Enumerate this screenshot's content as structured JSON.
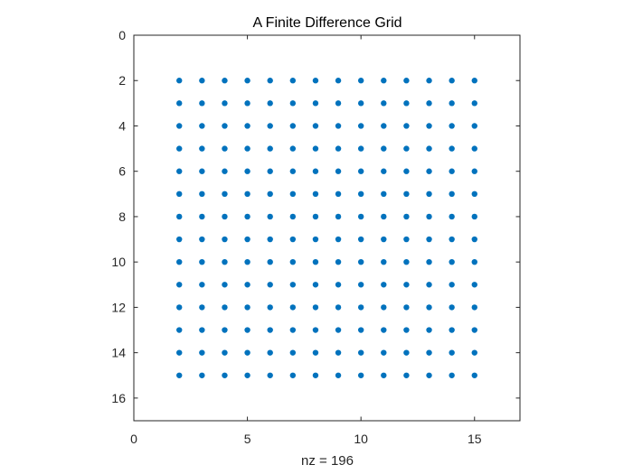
{
  "chart_data": {
    "type": "scatter",
    "title": "A Finite Difference Grid",
    "xlabel": "nz = 196",
    "ylabel": "",
    "xlim": [
      0,
      17
    ],
    "ylim": [
      0,
      17
    ],
    "y_reversed": true,
    "xticks": [
      0,
      5,
      10,
      15
    ],
    "yticks": [
      0,
      2,
      4,
      6,
      8,
      10,
      12,
      14,
      16
    ],
    "grid": false,
    "marker_color": "#0072BD",
    "grid_points": {
      "x": [
        2,
        3,
        4,
        5,
        6,
        7,
        8,
        9,
        10,
        11,
        12,
        13,
        14,
        15
      ],
      "y": [
        2,
        3,
        4,
        5,
        6,
        7,
        8,
        9,
        10,
        11,
        12,
        13,
        14,
        15
      ]
    }
  }
}
